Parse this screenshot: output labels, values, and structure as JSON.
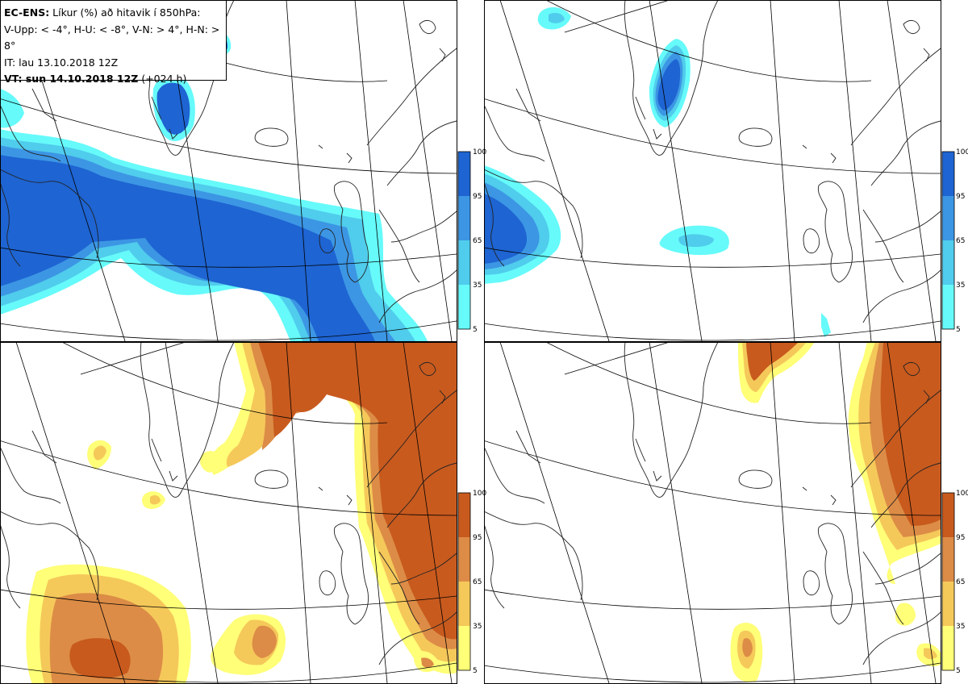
{
  "title": {
    "line1_bold": "EC-ENS:",
    "line1_rest": " Líkur (%) að hitavik í 850hPa:",
    "line2": "V-Upp: < -4°, H-U: < -8°, V-N: > 4°, H-N: > 8°",
    "line3": "IT: lau 13.10.2018 12Z",
    "line4_bold": "VT: sun 14.10.2018 12Z",
    "line4_rest": " (+024 h)"
  },
  "colorbar": {
    "ticks": [
      "100",
      "95",
      "65",
      "35",
      "5"
    ],
    "cold_colors": [
      "#66fafa",
      "#50ccec",
      "#3c96e4",
      "#1e64d2"
    ],
    "warm_colors": [
      "#ffff78",
      "#f5c85a",
      "#dc8c46",
      "#c85a1e"
    ]
  },
  "panels": [
    {
      "name": "V-Upp",
      "colorbar": "cold"
    },
    {
      "name": "H-U",
      "colorbar": "cold"
    },
    {
      "name": "V-N",
      "colorbar": "warm"
    },
    {
      "name": "H-N",
      "colorbar": "warm"
    }
  ]
}
